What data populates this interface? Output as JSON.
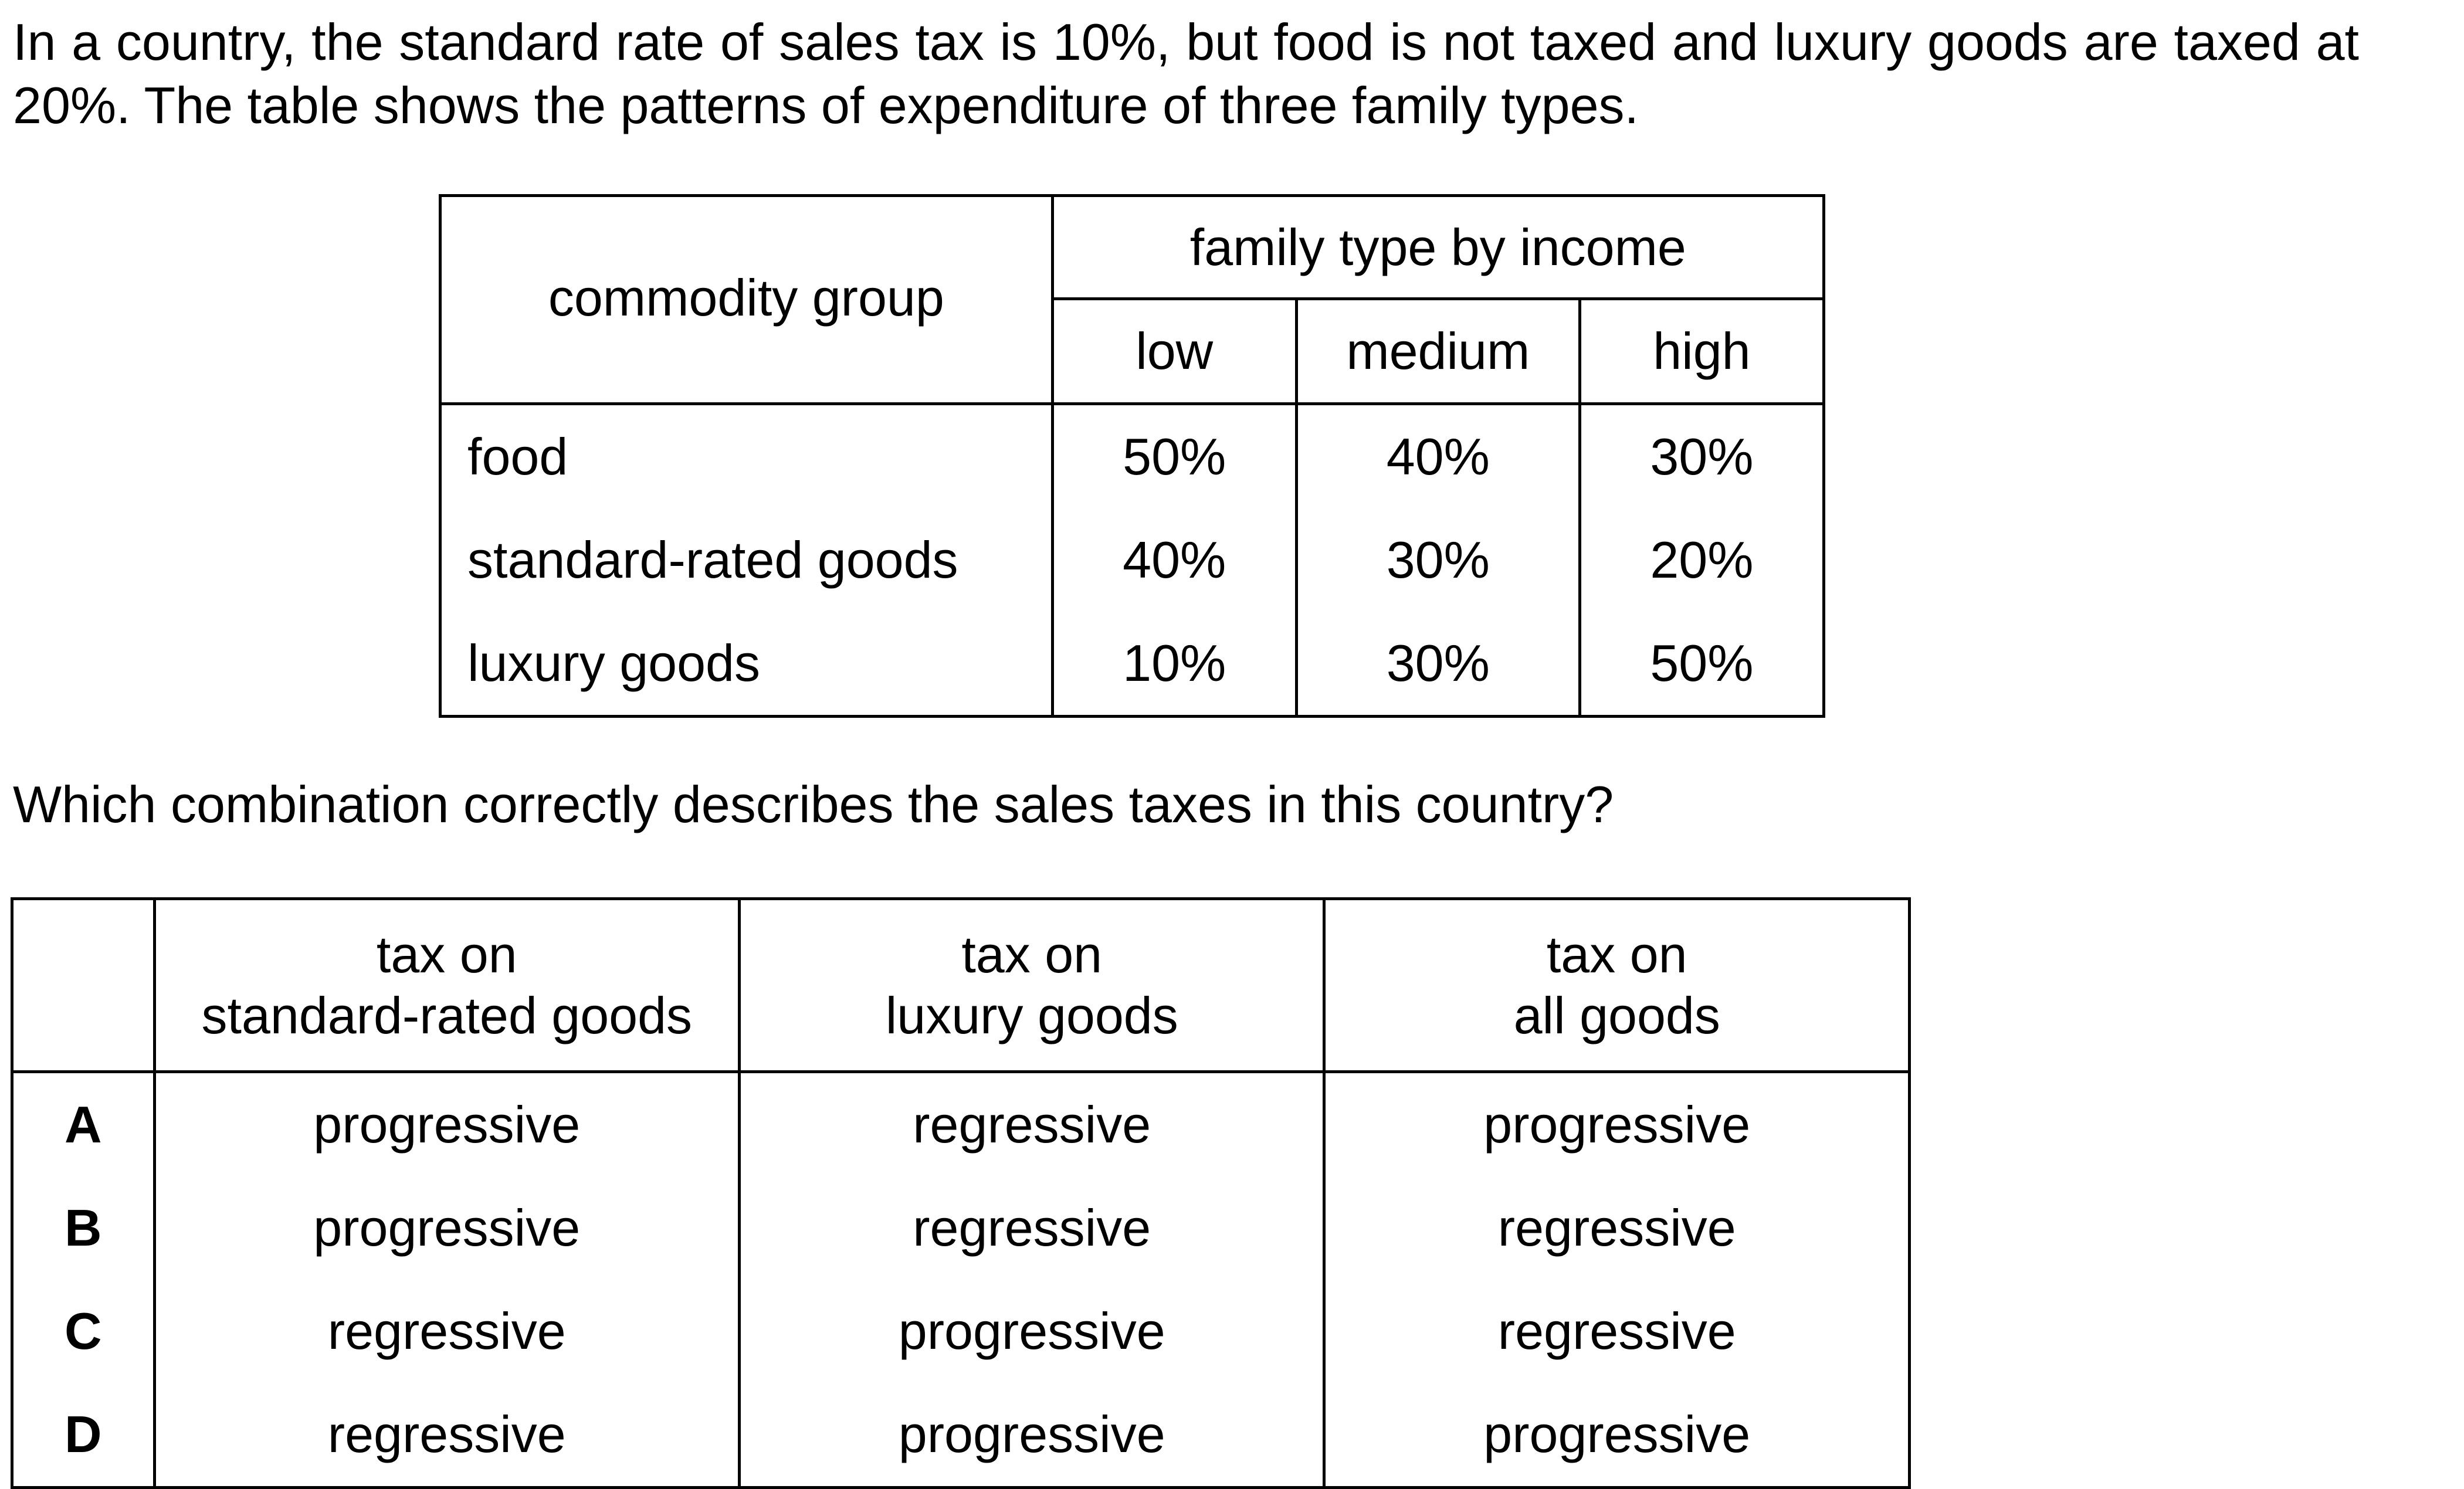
{
  "intro": {
    "text": "In a country, the standard rate of sales tax is 10%, but food is not taxed and luxury goods are taxed at 20%. The table shows the patterns of expenditure of three family types."
  },
  "expenditure_table": {
    "row_header": "commodity group",
    "group_header": "family type by income",
    "columns": [
      "low",
      "medium",
      "high"
    ],
    "rows": [
      {
        "label": "food",
        "values": [
          "50%",
          "40%",
          "30%"
        ]
      },
      {
        "label": "standard-rated goods",
        "values": [
          "40%",
          "30%",
          "20%"
        ]
      },
      {
        "label": "luxury goods",
        "values": [
          "10%",
          "30%",
          "50%"
        ]
      }
    ]
  },
  "question": {
    "text": "Which combination correctly describes the sales taxes in this country?"
  },
  "options_table": {
    "headers": [
      {
        "line1": "tax on",
        "line2": "standard-rated goods"
      },
      {
        "line1": "tax on",
        "line2": "luxury goods"
      },
      {
        "line1": "tax on",
        "line2": "all goods"
      }
    ],
    "rows": [
      {
        "key": "A",
        "values": [
          "progressive",
          "regressive",
          "progressive"
        ]
      },
      {
        "key": "B",
        "values": [
          "progressive",
          "regressive",
          "regressive"
        ]
      },
      {
        "key": "C",
        "values": [
          "regressive",
          "progressive",
          "regressive"
        ]
      },
      {
        "key": "D",
        "values": [
          "regressive",
          "progressive",
          "progressive"
        ]
      }
    ]
  }
}
